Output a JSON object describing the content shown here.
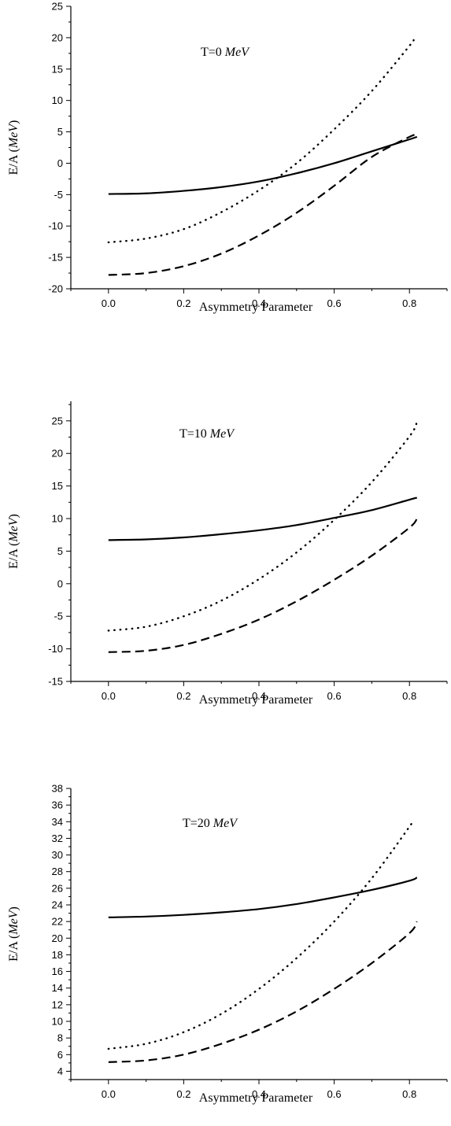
{
  "chart_data": [
    {
      "type": "line",
      "annotation": {
        "prefix": "T=0 ",
        "unit": "MeV"
      },
      "xlabel": "Asymmetry Parameter",
      "ylabel": {
        "prefix": "E/A (",
        "unit": "MeV",
        "suffix": ")"
      },
      "xlim": [
        -0.1,
        0.9
      ],
      "ylim": [
        -20,
        25
      ],
      "xticks": [
        0.0,
        0.2,
        0.4,
        0.6,
        0.8
      ],
      "xtick_labels": [
        "0.0",
        "0.2",
        "0.4",
        "0.6",
        "0.8"
      ],
      "yticks": [
        -20,
        -15,
        -10,
        -5,
        0,
        5,
        10,
        15,
        20,
        25
      ],
      "ytick_labels": [
        "-20",
        "-15",
        "-10",
        "-5",
        "0",
        "5",
        "10",
        "15",
        "20",
        "25"
      ],
      "grid": false,
      "series": [
        {
          "style": "solid",
          "x": [
            0.0,
            0.1,
            0.2,
            0.3,
            0.4,
            0.5,
            0.6,
            0.7,
            0.8,
            0.82
          ],
          "values": [
            -4.9,
            -4.8,
            -4.4,
            -3.8,
            -2.9,
            -1.6,
            0.0,
            1.9,
            3.8,
            4.2
          ]
        },
        {
          "style": "dotted",
          "x": [
            0.0,
            0.1,
            0.2,
            0.3,
            0.4,
            0.5,
            0.6,
            0.7,
            0.8,
            0.81
          ],
          "values": [
            -12.6,
            -12.0,
            -10.5,
            -7.8,
            -4.3,
            0.0,
            5.4,
            11.5,
            18.7,
            19.6
          ]
        },
        {
          "style": "dashed",
          "x": [
            0.0,
            0.1,
            0.2,
            0.3,
            0.4,
            0.5,
            0.6,
            0.7,
            0.8,
            0.82
          ],
          "values": [
            -17.8,
            -17.5,
            -16.4,
            -14.4,
            -11.5,
            -7.9,
            -3.6,
            1.0,
            4.2,
            4.5
          ]
        }
      ]
    },
    {
      "type": "line",
      "annotation": {
        "prefix": "T=10 ",
        "unit": "MeV"
      },
      "xlabel": "Asymmetry Parameter",
      "ylabel": {
        "prefix": "E/A (",
        "unit": "MeV",
        "suffix": ")"
      },
      "xlim": [
        -0.1,
        0.9
      ],
      "ylim": [
        -15,
        28
      ],
      "xticks": [
        0.0,
        0.2,
        0.4,
        0.6,
        0.8
      ],
      "xtick_labels": [
        "0.0",
        "0.2",
        "0.4",
        "0.6",
        "0.8"
      ],
      "yticks": [
        -15,
        -10,
        -5,
        0,
        5,
        10,
        15,
        20,
        25
      ],
      "ytick_labels": [
        "-15",
        "-10",
        "-5",
        "0",
        "5",
        "10",
        "15",
        "20",
        "25"
      ],
      "grid": false,
      "series": [
        {
          "style": "solid",
          "x": [
            0.0,
            0.1,
            0.2,
            0.3,
            0.4,
            0.5,
            0.6,
            0.7,
            0.8,
            0.82
          ],
          "values": [
            6.7,
            6.8,
            7.1,
            7.6,
            8.2,
            9.0,
            10.1,
            11.3,
            12.9,
            13.2
          ]
        },
        {
          "style": "dotted",
          "x": [
            0.0,
            0.1,
            0.2,
            0.3,
            0.4,
            0.5,
            0.6,
            0.7,
            0.8,
            0.82
          ],
          "values": [
            -7.2,
            -6.6,
            -5.0,
            -2.6,
            0.7,
            4.8,
            9.8,
            15.6,
            22.6,
            24.8
          ]
        },
        {
          "style": "dashed",
          "x": [
            0.0,
            0.1,
            0.2,
            0.3,
            0.4,
            0.5,
            0.6,
            0.7,
            0.8,
            0.82
          ],
          "values": [
            -10.5,
            -10.3,
            -9.4,
            -7.7,
            -5.5,
            -2.7,
            0.6,
            4.3,
            8.6,
            10.0
          ]
        }
      ]
    },
    {
      "type": "line",
      "annotation": {
        "prefix": "T=20 ",
        "unit": "MeV"
      },
      "xlabel": "Asymmetry Parameter",
      "ylabel": {
        "prefix": "E/A (",
        "unit": "MeV",
        "suffix": ")"
      },
      "xlim": [
        -0.1,
        0.9
      ],
      "ylim": [
        3,
        38
      ],
      "xticks": [
        0.0,
        0.2,
        0.4,
        0.6,
        0.8
      ],
      "xtick_labels": [
        "0.0",
        "0.2",
        "0.4",
        "0.6",
        "0.8"
      ],
      "yticks": [
        4,
        6,
        8,
        10,
        12,
        14,
        16,
        18,
        20,
        22,
        24,
        26,
        28,
        30,
        32,
        34,
        36,
        38
      ],
      "ytick_labels": [
        "4",
        "6",
        "8",
        "10",
        "12",
        "14",
        "16",
        "18",
        "20",
        "22",
        "24",
        "26",
        "28",
        "30",
        "32",
        "34",
        "36",
        "38"
      ],
      "grid": false,
      "series": [
        {
          "style": "solid",
          "x": [
            0.0,
            0.1,
            0.2,
            0.3,
            0.4,
            0.5,
            0.6,
            0.7,
            0.8,
            0.82
          ],
          "values": [
            22.5,
            22.6,
            22.8,
            23.1,
            23.5,
            24.1,
            24.9,
            25.8,
            26.9,
            27.3
          ]
        },
        {
          "style": "dotted",
          "x": [
            0.0,
            0.1,
            0.2,
            0.3,
            0.4,
            0.5,
            0.6,
            0.7,
            0.8,
            0.81
          ],
          "values": [
            6.7,
            7.3,
            8.7,
            10.9,
            13.9,
            17.6,
            22.0,
            27.2,
            33.4,
            34.2
          ]
        },
        {
          "style": "dashed",
          "x": [
            0.0,
            0.1,
            0.2,
            0.3,
            0.4,
            0.5,
            0.6,
            0.7,
            0.8,
            0.82
          ],
          "values": [
            5.1,
            5.3,
            6.0,
            7.3,
            9.0,
            11.2,
            13.9,
            17.0,
            20.6,
            22.0
          ]
        }
      ]
    }
  ]
}
